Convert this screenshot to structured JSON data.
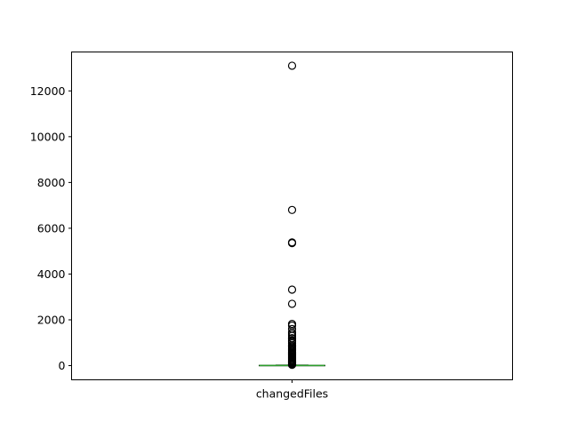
{
  "chart_data": {
    "type": "box",
    "categories": [
      "changedFiles"
    ],
    "ylim": [
      -620,
      13700
    ],
    "yticks": [
      0,
      2000,
      4000,
      6000,
      8000,
      10000,
      12000
    ],
    "box": {
      "q1": 2,
      "median": 5,
      "q3": 12,
      "whisker_low": 1,
      "whisker_high": 27
    },
    "outliers": [
      13100,
      6800,
      5380,
      5350,
      3320,
      2700,
      1820,
      1750,
      1600,
      1450,
      1380,
      1300,
      1200,
      1100,
      1050,
      980,
      900,
      850,
      800,
      750,
      700,
      650,
      600,
      560,
      520,
      480,
      440,
      400,
      360,
      320,
      280,
      240,
      200,
      170,
      140,
      110,
      80,
      60,
      45,
      35
    ],
    "grid": false,
    "colors": {
      "median": "#2ca02c",
      "box": "#000000",
      "outlier_edge": "#000000"
    }
  }
}
